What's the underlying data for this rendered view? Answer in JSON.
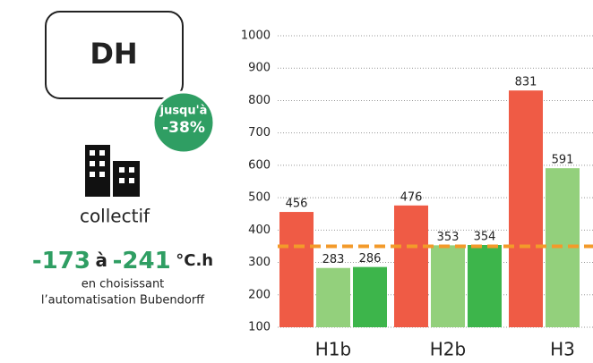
{
  "chart_data": {
    "type": "bar",
    "categories": [
      "H1b",
      "H2b",
      "H3"
    ],
    "series": [
      {
        "color": "#ef5b45",
        "values": [
          456,
          476,
          831
        ]
      },
      {
        "color": "#93d07c",
        "values": [
          283,
          353,
          591
        ]
      },
      {
        "color": "#3db54b",
        "values": [
          286,
          354,
          null
        ]
      }
    ],
    "ylim": [
      100,
      1000
    ],
    "yticks": [
      100,
      200,
      300,
      400,
      500,
      600,
      700,
      800,
      900,
      1000
    ],
    "grid": true,
    "reference_line": {
      "value": 350,
      "color": "#f39a2a"
    }
  },
  "infographic": {
    "box_label": "DH",
    "badge": [
      "jusqu'à",
      "-38%"
    ],
    "category": "collectif",
    "range_from": "-173",
    "range_word": "à",
    "range_to": "-241",
    "unit": "°C.h",
    "caption": [
      "en choisissant",
      "l’automatisation Bubendorff"
    ]
  }
}
